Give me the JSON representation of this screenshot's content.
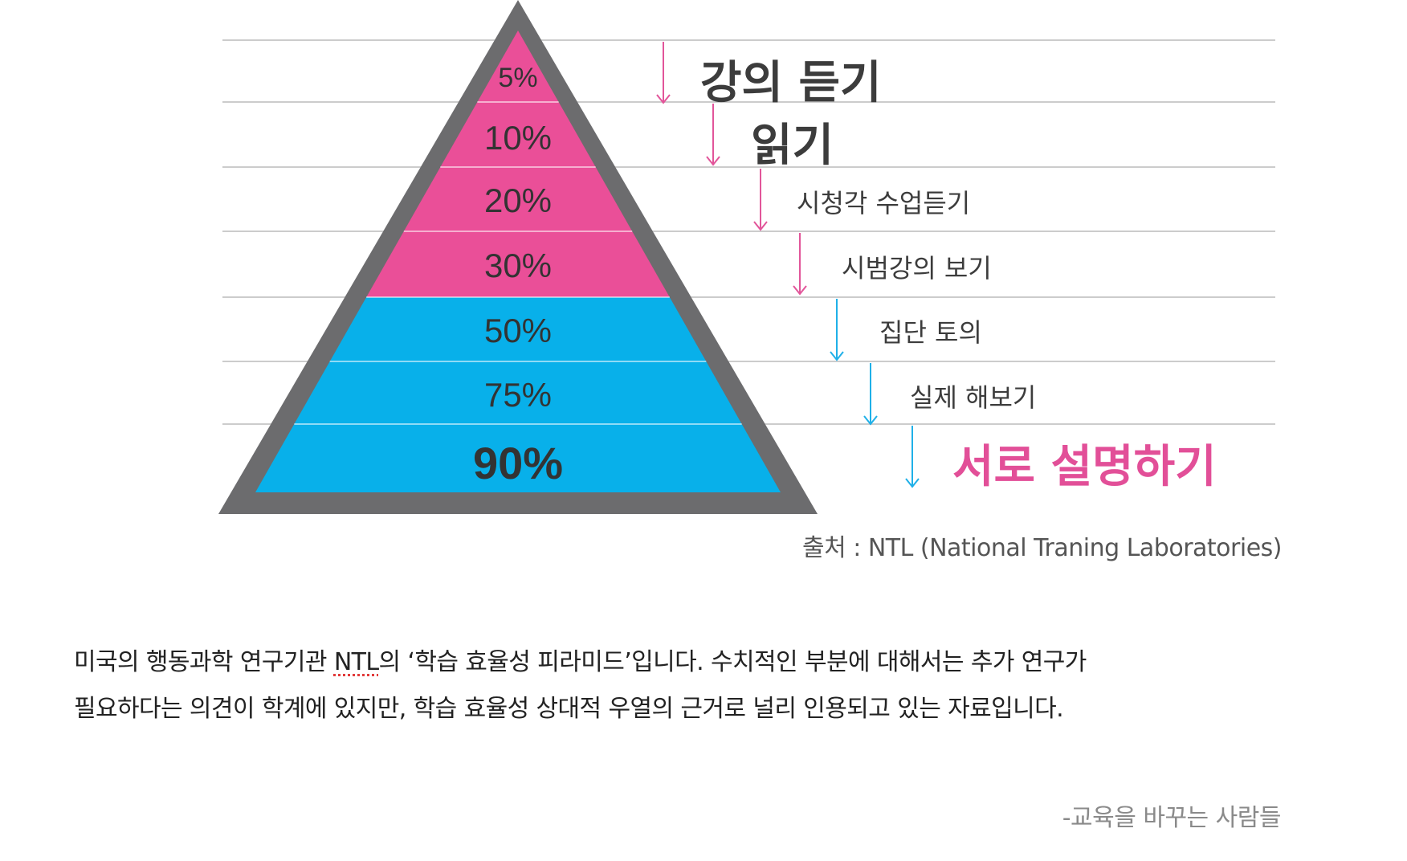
{
  "colors": {
    "pink": "#ea4f98",
    "blue": "#08b0ea",
    "frame": "#6c6c6e",
    "rule": "#cccccc",
    "pink_arrow": "#e2559a",
    "blue_arrow": "#1fb0e8",
    "highlight_text": "#e24f98",
    "text": "#3c3c3c"
  },
  "pyramid": {
    "levels": [
      {
        "percent": "5%",
        "method": "강의 듣기",
        "color_group": "pink",
        "method_style": "large"
      },
      {
        "percent": "10%",
        "method": "읽기",
        "color_group": "pink",
        "method_style": "large"
      },
      {
        "percent": "20%",
        "method": "시청각 수업듣기",
        "color_group": "pink",
        "method_style": "normal"
      },
      {
        "percent": "30%",
        "method": "시범강의 보기",
        "color_group": "pink",
        "method_style": "normal"
      },
      {
        "percent": "50%",
        "method": "집단 토의",
        "color_group": "blue",
        "method_style": "normal"
      },
      {
        "percent": "75%",
        "method": "실제 해보기",
        "color_group": "blue",
        "method_style": "normal"
      },
      {
        "percent": "90%",
        "method": "서로 설명하기",
        "color_group": "blue",
        "method_style": "highlight"
      }
    ]
  },
  "source": "출처 : NTL (National Traning Laboratories)",
  "caption": {
    "line1_before": "미국의 행동과학 연구기관 ",
    "line1_term": "NTL",
    "line1_after": "의 ‘학습 효율성 피라미드’입니다. 수치적인 부분에 대해서는 추가 연구가",
    "line2": "필요하다는 의견이 학계에 있지만, 학습 효율성 상대적 우열의 근거로 널리 인용되고 있는 자료입니다."
  },
  "credit": "-교육을 바꾸는 사람들"
}
